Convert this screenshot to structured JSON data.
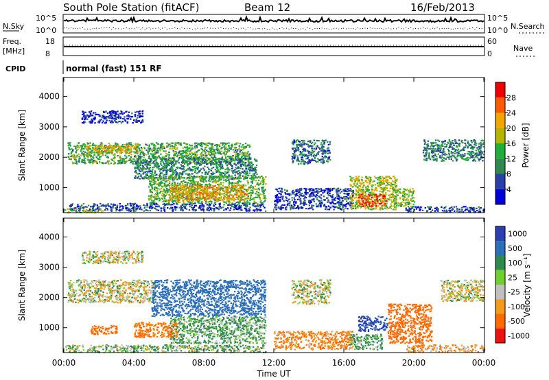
{
  "header": {
    "station": "South Pole Station (fitACF)",
    "beam": "Beam 12",
    "date": "16/Feb/2013"
  },
  "strips": {
    "nsky_label": "N.Sky",
    "nsearch_label": "N.Search",
    "nsky_ticks": [
      "10^5",
      "10^0"
    ],
    "nsearch_ticks": [
      "10^5",
      "10^0"
    ],
    "freq_label": "Freq.",
    "freq_unit": "[MHz]",
    "freq_ticks": [
      "18",
      "8"
    ],
    "nave_label": "Nave",
    "nave_ticks": [
      "60",
      "0"
    ],
    "cpid_label": "CPID",
    "cpid_value": "normal (fast) 151 RF"
  },
  "colors": {
    "power_scale": [
      "#0000dd",
      "#2a3fa8",
      "#2f8a4e",
      "#1fae3a",
      "#b4b400",
      "#f2a500",
      "#ff5a00",
      "#ee0000"
    ],
    "velocity_scale": [
      "#2b3fb3",
      "#2b6fb8",
      "#2f8a4e",
      "#6fcf2f",
      "#c0c0c0",
      "#f39a1a",
      "#ff6a00",
      "#ee1111"
    ]
  },
  "chart_data": [
    {
      "type": "heatmap",
      "name": "power",
      "ylabel": "Slant Range [km]",
      "yticks": [
        1000,
        2000,
        3000,
        4000
      ],
      "ylim": [
        200,
        4600
      ],
      "xlim": [
        0,
        24
      ],
      "colorbar_label": "Power [dB]",
      "colorbar_ticks": [
        4,
        8,
        12,
        16,
        20,
        24,
        28
      ],
      "colorbar_range": [
        0,
        32
      ],
      "regions": [
        {
          "t0": 0.2,
          "t1": 10.6,
          "r0": 1800,
          "r1": 2500,
          "value": 13
        },
        {
          "t0": 1.2,
          "t1": 4.2,
          "r0": 2150,
          "r1": 2400,
          "value": 20
        },
        {
          "t0": 4.0,
          "t1": 11.0,
          "r0": 1300,
          "r1": 2000,
          "value": 10
        },
        {
          "t0": 4.8,
          "t1": 11.5,
          "r0": 500,
          "r1": 1400,
          "value": 14
        },
        {
          "t0": 6.0,
          "t1": 10.5,
          "r0": 600,
          "r1": 1100,
          "value": 22
        },
        {
          "t0": 0.3,
          "t1": 11.5,
          "r0": 250,
          "r1": 500,
          "value": 6
        },
        {
          "t0": 1.0,
          "t1": 4.5,
          "r0": 3150,
          "r1": 3550,
          "value": 4
        },
        {
          "t0": 0.0,
          "t1": 2.3,
          "r0": 200,
          "r1": 320,
          "value": 18
        },
        {
          "t0": 12.0,
          "t1": 16.5,
          "r0": 300,
          "r1": 1000,
          "value": 5
        },
        {
          "t0": 13.0,
          "t1": 15.2,
          "r0": 1800,
          "r1": 2600,
          "value": 8
        },
        {
          "t0": 16.3,
          "t1": 19.0,
          "r0": 300,
          "r1": 1400,
          "value": 18
        },
        {
          "t0": 16.8,
          "t1": 18.4,
          "r0": 400,
          "r1": 800,
          "value": 28
        },
        {
          "t0": 18.8,
          "t1": 20.0,
          "r0": 400,
          "r1": 1000,
          "value": 16
        },
        {
          "t0": 20.5,
          "t1": 24.0,
          "r0": 1900,
          "r1": 2600,
          "value": 10
        },
        {
          "t0": 19.5,
          "t1": 24.0,
          "r0": 220,
          "r1": 400,
          "value": 5
        }
      ]
    },
    {
      "type": "heatmap",
      "name": "velocity",
      "ylabel": "Slant Range [km]",
      "xlabel": "Time UT",
      "xticks": [
        "00:00",
        "04:00",
        "08:00",
        "12:00",
        "16:00",
        "20:00",
        "00:00"
      ],
      "xtick_hours": [
        0,
        4,
        8,
        12,
        16,
        20,
        24
      ],
      "yticks": [
        1000,
        2000,
        3000,
        4000
      ],
      "ylim": [
        200,
        4600
      ],
      "xlim": [
        0,
        24
      ],
      "colorbar_label": "Velocity [m s⁻¹]",
      "colorbar_ticks": [
        "1000",
        "500",
        "100",
        "25",
        "-25",
        "-100",
        "-500",
        "-1000"
      ],
      "regions": [
        {
          "t0": 0.2,
          "t1": 5.2,
          "r0": 1850,
          "r1": 2600,
          "value": 0
        },
        {
          "t0": 5.0,
          "t1": 11.5,
          "r0": 1400,
          "r1": 2600,
          "value": 400
        },
        {
          "t0": 6.0,
          "t1": 11.5,
          "r0": 500,
          "r1": 1400,
          "value": 80
        },
        {
          "t0": 4.0,
          "t1": 6.5,
          "r0": 700,
          "r1": 1200,
          "value": -150
        },
        {
          "t0": 1.5,
          "t1": 3.0,
          "r0": 800,
          "r1": 1100,
          "value": -200
        },
        {
          "t0": 0.0,
          "t1": 11.5,
          "r0": 200,
          "r1": 450,
          "value": 50
        },
        {
          "t0": 1.0,
          "t1": 4.5,
          "r0": 3150,
          "r1": 3550,
          "value": 0
        },
        {
          "t0": 12.0,
          "t1": 16.5,
          "r0": 300,
          "r1": 900,
          "value": -100
        },
        {
          "t0": 13.0,
          "t1": 15.2,
          "r0": 1800,
          "r1": 2600,
          "value": 0
        },
        {
          "t0": 16.3,
          "t1": 18.2,
          "r0": 300,
          "r1": 800,
          "value": 80
        },
        {
          "t0": 16.8,
          "t1": 18.5,
          "r0": 900,
          "r1": 1400,
          "value": 800
        },
        {
          "t0": 18.5,
          "t1": 21.0,
          "r0": 500,
          "r1": 1800,
          "value": -250
        },
        {
          "t0": 21.5,
          "t1": 24.0,
          "r0": 1900,
          "r1": 2600,
          "value": 0
        },
        {
          "t0": 19.5,
          "t1": 24.0,
          "r0": 220,
          "r1": 450,
          "value": -80
        }
      ]
    }
  ]
}
